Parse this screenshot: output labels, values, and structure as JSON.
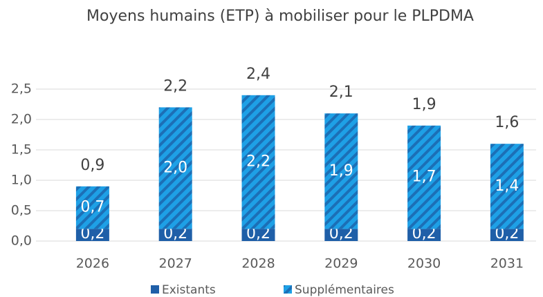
{
  "chart_data": {
    "type": "stacked_bar",
    "title": "Moyens humains (ETP) à mobiliser pour le PLPDMA",
    "categories": [
      "2026",
      "2027",
      "2028",
      "2029",
      "2030",
      "2031"
    ],
    "series": [
      {
        "name": "Existants",
        "color": "#1f5fa8",
        "values": [
          0.2,
          0.2,
          0.2,
          0.2,
          0.2,
          0.2
        ],
        "value_labels": [
          "0,2",
          "0,2",
          "0,2",
          "0,2",
          "0,2",
          "0,2"
        ]
      },
      {
        "name": "Supplémentaires",
        "color": "#1ea0e6",
        "pattern": "hatch",
        "values": [
          0.7,
          2.0,
          2.2,
          1.9,
          1.7,
          1.4
        ],
        "value_labels": [
          "0,7",
          "2,0",
          "2,2",
          "1,9",
          "1,7",
          "1,4"
        ]
      }
    ],
    "totals": [
      0.9,
      2.2,
      2.4,
      2.1,
      1.9,
      1.6
    ],
    "total_labels": [
      "0,9",
      "2,2",
      "2,4",
      "2,1",
      "1,9",
      "1,6"
    ],
    "ylim": [
      0,
      2.5
    ],
    "yticks": [
      {
        "value": 0,
        "label": "0,0"
      },
      {
        "value": 0.5,
        "label": "0,5"
      },
      {
        "value": 1,
        "label": "1,0"
      },
      {
        "value": 1.5,
        "label": "1,5"
      },
      {
        "value": 2,
        "label": "2,0"
      },
      {
        "value": 2.5,
        "label": "2,5"
      }
    ],
    "grid": true,
    "legend": "bottom"
  }
}
